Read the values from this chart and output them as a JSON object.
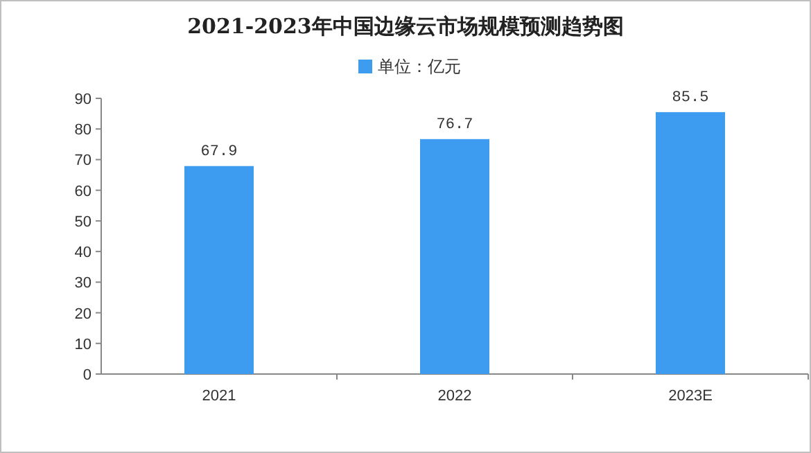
{
  "chart_data": {
    "type": "bar",
    "title": "2021-2023年中国边缘云市场规模预测趋势图",
    "categories": [
      "2021",
      "2022",
      "2023E"
    ],
    "series": [
      {
        "name": "单位：亿元",
        "color": "#3d9cf0",
        "values": [
          67.9,
          76.7,
          85.5
        ]
      }
    ],
    "ylim": [
      0,
      90
    ],
    "yticks": [
      0,
      10,
      20,
      30,
      40,
      50,
      60,
      70,
      80,
      90
    ],
    "data_labels": true,
    "legend": "top",
    "grid": false
  }
}
